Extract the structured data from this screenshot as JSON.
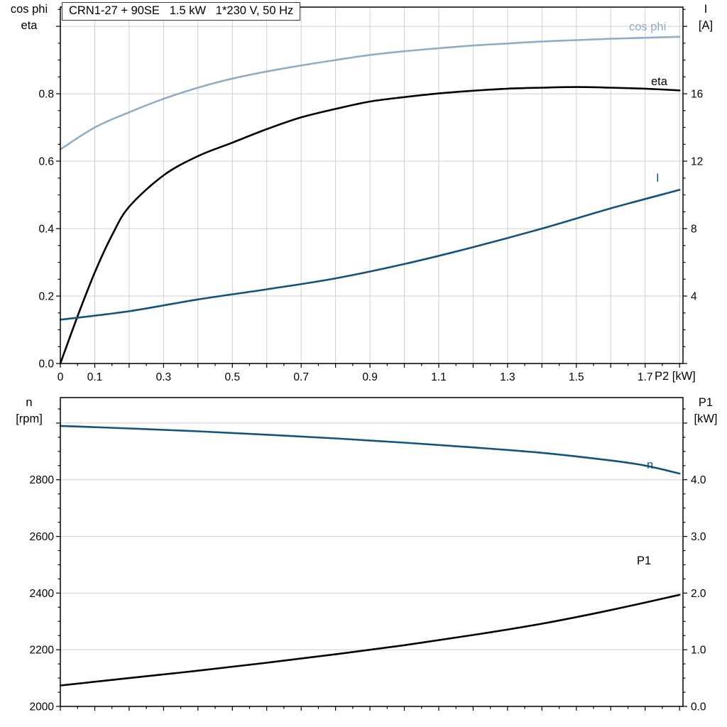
{
  "colors": {
    "light_blue": "#8fadc8",
    "dark_blue": "#0f537e",
    "black": "#000000",
    "grid": "#cfcfcf",
    "axis": "#000000"
  },
  "chart_data": [
    {
      "type": "line",
      "title": "CRN1-27 + 90SE   1.5 kW   1*230 V, 50 Hz",
      "xlabel": "P2 [kW]",
      "ylabel_left_lines": [
        "cos phi",
        "eta"
      ],
      "ylabel_right_lines": [
        "I",
        "[A]"
      ],
      "xlim": [
        0,
        1.81
      ],
      "ylim_left": [
        0,
        1.057
      ],
      "ylim_right": [
        0,
        21.14
      ],
      "grid": true,
      "legend": "inline-labels",
      "x_grid_step": 0.1,
      "x_ticks": [
        {
          "v": 0,
          "label": "0"
        },
        {
          "v": 0.1,
          "label": "0.1"
        },
        {
          "v": 0.3,
          "label": "0.3"
        },
        {
          "v": 0.5,
          "label": "0.5"
        },
        {
          "v": 0.7,
          "label": "0.7"
        },
        {
          "v": 0.9,
          "label": "0.9"
        },
        {
          "v": 1.1,
          "label": "1.1"
        },
        {
          "v": 1.3,
          "label": "1.3"
        },
        {
          "v": 1.5,
          "label": "1.5"
        },
        {
          "v": 1.7,
          "label": "1.7"
        }
      ],
      "y_ticks_left": [
        {
          "v": 0.0,
          "label": "0.0"
        },
        {
          "v": 0.2,
          "label": "0.2"
        },
        {
          "v": 0.4,
          "label": "0.4"
        },
        {
          "v": 0.6,
          "label": "0.6"
        },
        {
          "v": 0.8,
          "label": "0.8"
        }
      ],
      "y_grid_values": [
        0.2,
        0.4,
        0.6,
        0.8,
        1.0
      ],
      "y_ticks_right": [
        {
          "v": 4,
          "label": "4"
        },
        {
          "v": 8,
          "label": "8"
        },
        {
          "v": 12,
          "label": "12"
        },
        {
          "v": 16,
          "label": "16"
        }
      ],
      "series": [
        {
          "name": "cos phi",
          "axis": "left",
          "color_key": "light_blue",
          "x": [
            0,
            0.1,
            0.2,
            0.3,
            0.4,
            0.5,
            0.6,
            0.7,
            0.8,
            0.9,
            1.0,
            1.1,
            1.2,
            1.3,
            1.4,
            1.5,
            1.6,
            1.7,
            1.8
          ],
          "y": [
            0.635,
            0.7,
            0.745,
            0.785,
            0.818,
            0.845,
            0.866,
            0.884,
            0.9,
            0.915,
            0.926,
            0.935,
            0.943,
            0.949,
            0.955,
            0.959,
            0.963,
            0.966,
            0.969
          ]
        },
        {
          "name": "eta",
          "axis": "left",
          "color_key": "black",
          "x": [
            0,
            0.05,
            0.1,
            0.15,
            0.2,
            0.3,
            0.4,
            0.5,
            0.6,
            0.7,
            0.8,
            0.9,
            1.0,
            1.1,
            1.2,
            1.3,
            1.4,
            1.5,
            1.6,
            1.7,
            1.8
          ],
          "y": [
            0,
            0.14,
            0.27,
            0.38,
            0.465,
            0.558,
            0.615,
            0.655,
            0.695,
            0.73,
            0.755,
            0.777,
            0.79,
            0.801,
            0.809,
            0.815,
            0.818,
            0.82,
            0.818,
            0.815,
            0.81
          ]
        },
        {
          "name": "I",
          "axis": "right",
          "color_key": "dark_blue",
          "x": [
            0,
            0.2,
            0.4,
            0.6,
            0.8,
            1.0,
            1.2,
            1.4,
            1.6,
            1.8
          ],
          "y": [
            2.6,
            3.1,
            3.8,
            4.4,
            5.05,
            5.9,
            6.9,
            8.0,
            9.2,
            10.3
          ]
        }
      ]
    },
    {
      "type": "line",
      "title": "",
      "xlabel": "",
      "ylabel_left_lines": [
        "n",
        "[rpm]"
      ],
      "ylabel_right_lines": [
        "P1",
        "[kW]"
      ],
      "xlim": [
        0,
        1.81
      ],
      "ylim_left": [
        2000,
        3090
      ],
      "ylim_right": [
        0,
        5.45
      ],
      "grid": true,
      "legend": "inline-labels",
      "x_grid_step": null,
      "x_ticks": [],
      "y_ticks_left": [
        {
          "v": 2000,
          "label": "2000"
        },
        {
          "v": 2200,
          "label": "2200"
        },
        {
          "v": 2400,
          "label": "2400"
        },
        {
          "v": 2600,
          "label": "2600"
        },
        {
          "v": 2800,
          "label": "2800"
        }
      ],
      "y_grid_values": [
        2200,
        2400,
        2600,
        2800,
        3000
      ],
      "y_ticks_right": [
        {
          "v": 0,
          "label": "0.0"
        },
        {
          "v": 1,
          "label": "1.0"
        },
        {
          "v": 2,
          "label": "2.0"
        },
        {
          "v": 3,
          "label": "3.0"
        },
        {
          "v": 4,
          "label": "4.0"
        }
      ],
      "series": [
        {
          "name": "n",
          "axis": "left",
          "color_key": "dark_blue",
          "x": [
            0,
            0.2,
            0.4,
            0.6,
            0.8,
            1.0,
            1.2,
            1.4,
            1.6,
            1.7,
            1.8
          ],
          "y": [
            2990,
            2981,
            2971,
            2959,
            2946,
            2931,
            2914,
            2895,
            2868,
            2850,
            2822
          ]
        },
        {
          "name": "P1",
          "axis": "right",
          "color_key": "black",
          "x": [
            0,
            0.2,
            0.4,
            0.6,
            0.8,
            1.0,
            1.2,
            1.4,
            1.6,
            1.8
          ],
          "y": [
            0.37,
            0.5,
            0.63,
            0.77,
            0.92,
            1.08,
            1.26,
            1.46,
            1.7,
            1.97
          ]
        }
      ]
    }
  ]
}
